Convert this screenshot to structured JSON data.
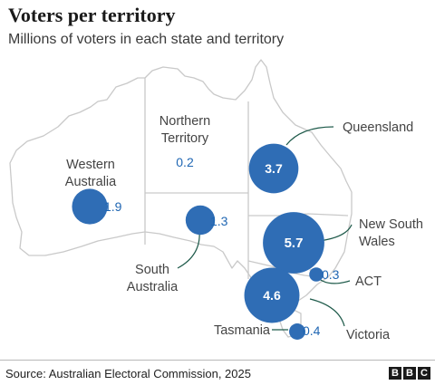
{
  "title": "Voters per territory",
  "subtitle": "Millions of voters in each state and territory",
  "source": "Source: Australian Electoral Commission, 2025",
  "branding": [
    "B",
    "B",
    "C"
  ],
  "colors": {
    "bubble": "#2f6db5",
    "value_text": "#1f66b3",
    "outline": "#c9c9c9",
    "leader": "#1e5a4a"
  },
  "territories": [
    {
      "id": "wa",
      "name_lines": [
        "Western",
        "Australia"
      ],
      "value": "1.9",
      "voters_millions": 1.9
    },
    {
      "id": "nt",
      "name_lines": [
        "Northern",
        "Territory"
      ],
      "value": "0.2",
      "voters_millions": 0.2
    },
    {
      "id": "qld",
      "name_lines": [
        "Queensland"
      ],
      "value": "3.7",
      "voters_millions": 3.7
    },
    {
      "id": "sa",
      "name_lines": [
        "South",
        "Australia"
      ],
      "value": "1.3",
      "voters_millions": 1.3
    },
    {
      "id": "nsw",
      "name_lines": [
        "New South",
        "Wales"
      ],
      "value": "5.7",
      "voters_millions": 5.7
    },
    {
      "id": "act",
      "name_lines": [
        "ACT"
      ],
      "value": "0.3",
      "voters_millions": 0.3
    },
    {
      "id": "vic",
      "name_lines": [
        "Victoria"
      ],
      "value": "4.6",
      "voters_millions": 4.6
    },
    {
      "id": "tas",
      "name_lines": [
        "Tasmania"
      ],
      "value": "0.4",
      "voters_millions": 0.4
    }
  ]
}
